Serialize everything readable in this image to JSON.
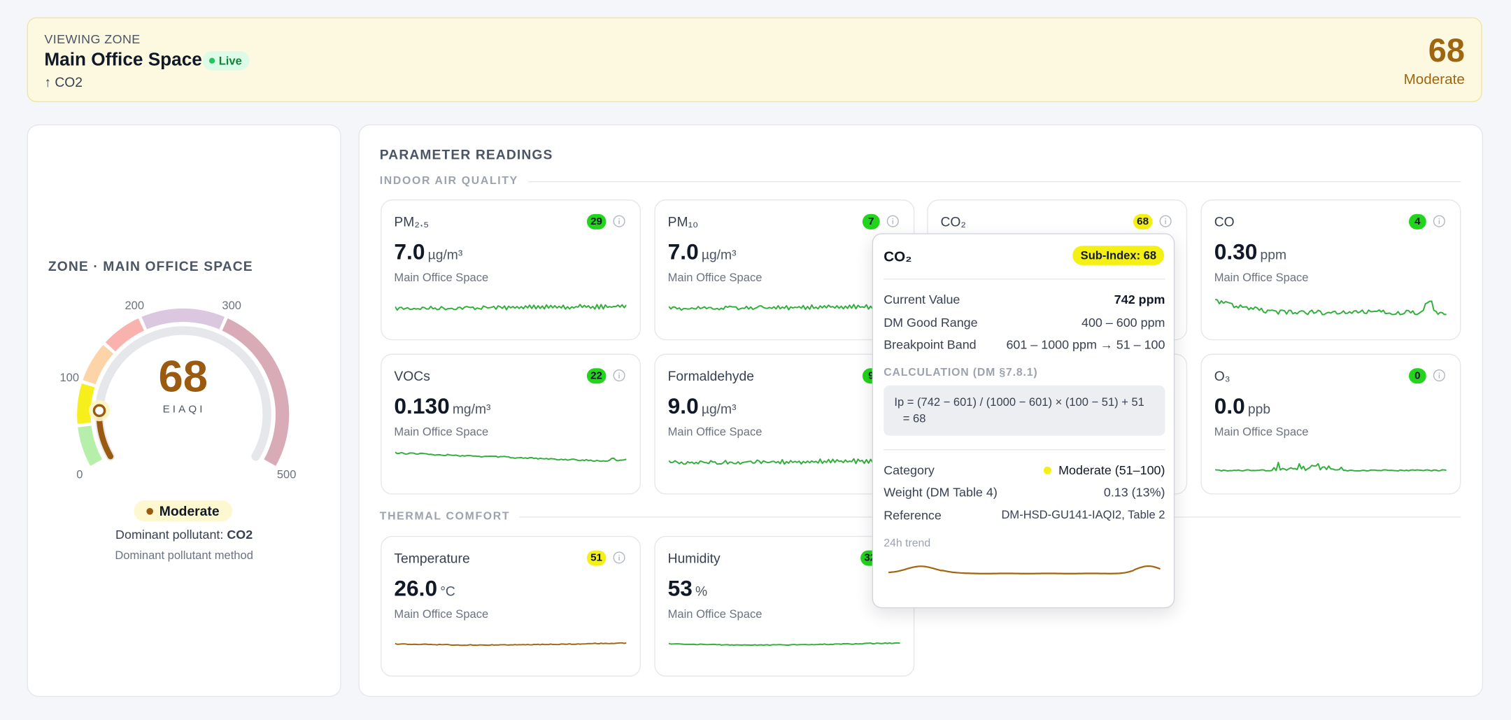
{
  "header": {
    "eyebrow": "VIEWING ZONE",
    "zone": "Main Office Space",
    "status": "Live",
    "dominant": "↑ CO2",
    "score": "68",
    "category": "Moderate"
  },
  "zone_panel": {
    "title": "ZONE · MAIN OFFICE SPACE",
    "gauge": {
      "value": 68,
      "label": "EIAQI",
      "lim": [
        0,
        500
      ],
      "ticks": [
        0,
        100,
        200,
        300,
        500
      ],
      "color": "#9a5b10",
      "track_color": "#e5e7eb",
      "bands": [
        {
          "from": 0,
          "to": 50,
          "color": "#b6efa9"
        },
        {
          "from": 50,
          "to": 100,
          "color": "#f6ef1c"
        },
        {
          "from": 100,
          "to": 150,
          "color": "#fdd3a8"
        },
        {
          "from": 150,
          "to": 200,
          "color": "#f9b2ae"
        },
        {
          "from": 200,
          "to": 300,
          "color": "#dcc7e1"
        },
        {
          "from": 300,
          "to": 500,
          "color": "#d9abb6"
        }
      ]
    },
    "category": "Moderate",
    "dominant_label": "Dominant pollutant:",
    "dominant_value": "CO2",
    "method": "Dominant pollutant method"
  },
  "readings": {
    "title": "PARAMETER READINGS",
    "sections": [
      {
        "title": "INDOOR AIR QUALITY",
        "cards": [
          {
            "name": "PM₂.₅",
            "index": 29,
            "value": "7.0",
            "unit": "µg/m³",
            "location": "Main Office Space",
            "badge_color": "#22d41c",
            "trend_color": "#2fae3a"
          },
          {
            "name": "PM₁₀",
            "index": 7,
            "value": "7.0",
            "unit": "µg/m³",
            "location": "Main Office Space",
            "badge_color": "#22d41c",
            "trend_color": "#2fae3a"
          },
          {
            "name": "CO₂",
            "index": 68,
            "badge_color": "#f5f014"
          },
          {
            "name": "CO",
            "index": 4,
            "value": "0.30",
            "unit": "ppm",
            "location": "Main Office Space",
            "badge_color": "#22d41c",
            "trend_color": "#2fae3a"
          },
          {
            "name": "VOCs",
            "index": 22,
            "value": "0.130",
            "unit": "mg/m³",
            "location": "Main Office Space",
            "badge_color": "#22d41c",
            "trend_color": "#2fae3a"
          },
          {
            "name": "Formaldehyde",
            "index": 9,
            "value": "9.0",
            "unit": "µg/m³",
            "location": "Main Office Space",
            "badge_color": "#22d41c",
            "trend_color": "#2fae3a"
          },
          {
            "name": "O₃",
            "index": 0,
            "value": "0.0",
            "unit": "ppb",
            "location": "Main Office Space",
            "badge_color": "#22d41c",
            "trend_color": "#2fae3a"
          }
        ]
      },
      {
        "title": "THERMAL COMFORT",
        "cards": [
          {
            "name": "Temperature",
            "index": 51,
            "value": "26.0",
            "unit": "°C",
            "location": "Main Office Space",
            "badge_color": "#f5f014",
            "trend_color": "#a0650f"
          },
          {
            "name": "Humidity",
            "index": 32,
            "value": "53",
            "unit": "%",
            "location": "Main Office Space",
            "badge_color": "#22d41c",
            "trend_color": "#2fae3a"
          }
        ]
      }
    ]
  },
  "tooltip": {
    "title": "CO₂",
    "badge": "Sub-Index: 68",
    "rows": [
      [
        "Current Value",
        "742 ppm"
      ],
      [
        "DM Good Range",
        "400 – 600 ppm"
      ],
      [
        "Breakpoint Band",
        "601 – 1000 ppm → 51 – 100"
      ]
    ],
    "calc_title": "CALCULATION (DM §7.8.1)",
    "calc": [
      "Ip = (742 − 601) / (1000 − 601) × (100 − 51) + 51",
      "= 68"
    ],
    "rows2": [
      [
        "Category",
        "Moderate (51–100)"
      ],
      [
        "Weight (DM Table 4)",
        "0.13 (13%)"
      ],
      [
        "Reference",
        "DM-HSD-GU141-IAQI2, Table 2"
      ]
    ],
    "trend_label": "24h trend",
    "trend_color": "#a0650f"
  }
}
